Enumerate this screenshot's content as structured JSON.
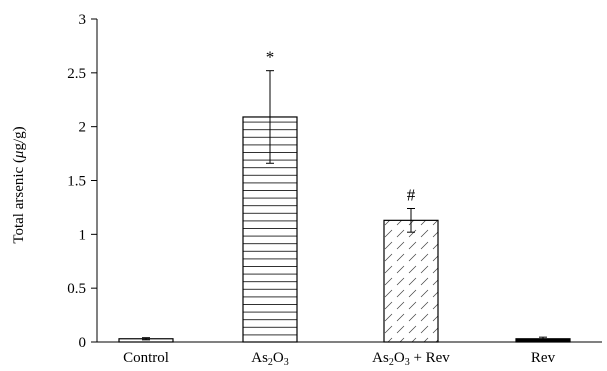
{
  "chart_data": {
    "type": "bar",
    "ylabel": "Total arsenic (μg/g)",
    "ylabel_parts": {
      "prefix": "Total arsenic (",
      "greek": "μ",
      "suffix": "g/g)"
    },
    "ylim": [
      0,
      3
    ],
    "yticks": [
      0,
      0.5,
      1,
      1.5,
      2,
      2.5,
      3
    ],
    "ytick_labels": [
      "0",
      "0.5",
      "1",
      "1.5",
      "2",
      "2.5",
      "3"
    ],
    "grid": false,
    "categories": [
      {
        "key": "control",
        "label": "Control",
        "parts": [
          {
            "t": "Control"
          }
        ]
      },
      {
        "key": "as2o3",
        "label": "As2O3",
        "parts": [
          {
            "t": "As"
          },
          {
            "t": "2",
            "sub": true
          },
          {
            "t": "O"
          },
          {
            "t": "3",
            "sub": true
          }
        ]
      },
      {
        "key": "as2o3-rev",
        "label": "As2O3 + Rev",
        "parts": [
          {
            "t": "As"
          },
          {
            "t": "2",
            "sub": true
          },
          {
            "t": "O"
          },
          {
            "t": "3",
            "sub": true
          },
          {
            "t": " + Rev"
          }
        ]
      },
      {
        "key": "rev",
        "label": "Rev",
        "parts": [
          {
            "t": "Rev"
          }
        ]
      }
    ],
    "values": [
      0.03,
      2.09,
      1.13,
      0.03
    ],
    "errors": [
      0.01,
      0.43,
      0.11,
      0.015
    ],
    "patterns": [
      "none",
      "horizontal",
      "diagonal",
      "solid"
    ],
    "significance": [
      "",
      "*",
      "#",
      ""
    ]
  }
}
